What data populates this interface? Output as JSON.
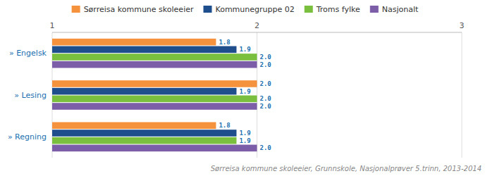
{
  "chart_data": {
    "type": "bar",
    "orientation": "horizontal",
    "subtitle": "Sørreisa kommune skoleeier, Grunnskole, Nasjonalprøver 5.trinn, 2013-2014",
    "categories": [
      "» Engelsk",
      "» Lesing",
      "» Regning"
    ],
    "series": [
      {
        "name": "Sørreisa kommune skoleeier",
        "color": "#F5923E",
        "values": [
          1.8,
          2.0,
          1.8
        ],
        "value_labels": [
          "1.8",
          "2.0",
          "1.8"
        ]
      },
      {
        "name": "Kommunegruppe 02",
        "color": "#1F4E8C",
        "values": [
          1.9,
          1.9,
          1.9
        ],
        "value_labels": [
          "1.9",
          "1.9",
          "1.9"
        ]
      },
      {
        "name": "Troms fylke",
        "color": "#7BBF3E",
        "values": [
          2.0,
          2.0,
          1.9
        ],
        "value_labels": [
          "2.0",
          "2.0",
          "1.9"
        ]
      },
      {
        "name": "Nasjonalt",
        "color": "#7B5EA7",
        "values": [
          2.0,
          2.0,
          2.0
        ],
        "value_labels": [
          "2.0",
          "2.0",
          "2.0"
        ]
      }
    ],
    "xlim": [
      1,
      3
    ],
    "xticks": [
      1,
      2,
      3
    ],
    "grid": true,
    "legend": "top",
    "data_labels": true
  }
}
